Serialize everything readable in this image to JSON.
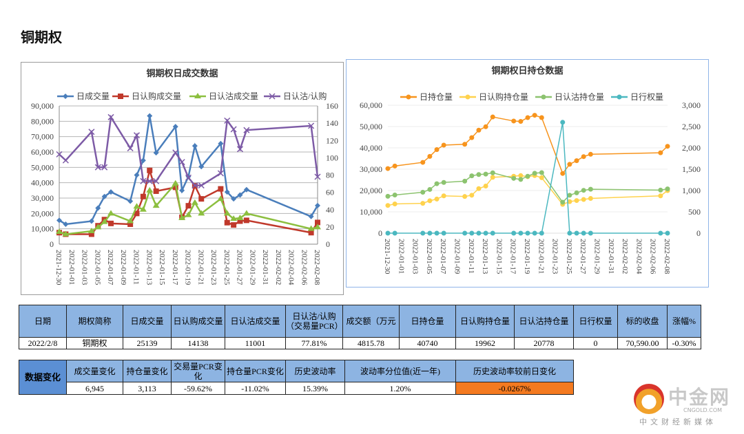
{
  "page_title": "铜期权",
  "chart_data": [
    {
      "type": "line",
      "title": "铜期权日成交数据",
      "x_ticks": [
        "2021-12-30",
        "2022-01-01",
        "2022-01-03",
        "2022-01-05",
        "2022-01-07",
        "2022-01-09",
        "2022-01-11",
        "2022-01-13",
        "2022-01-15",
        "2022-01-17",
        "2022-01-19",
        "2022-01-21",
        "2022-01-23",
        "2022-01-25",
        "2022-01-27",
        "2022-01-29",
        "2022-01-31",
        "2022-02-02",
        "2022-02-04",
        "2022-02-06",
        "2022-02-08"
      ],
      "x": [
        "2021-12-30",
        "2021-12-31",
        "2022-01-04",
        "2022-01-05",
        "2022-01-06",
        "2022-01-07",
        "2022-01-10",
        "2022-01-11",
        "2022-01-12",
        "2022-01-13",
        "2022-01-14",
        "2022-01-17",
        "2022-01-18",
        "2022-01-19",
        "2022-01-20",
        "2022-01-21",
        "2022-01-24",
        "2022-01-25",
        "2022-01-26",
        "2022-01-27",
        "2022-01-28",
        "2022-02-07",
        "2022-02-08"
      ],
      "ylim": [
        0,
        90000
      ],
      "y_ticks": [
        "0",
        "10,000",
        "20,000",
        "30,000",
        "40,000",
        "50,000",
        "60,000",
        "70,000",
        "80,000",
        "90,000"
      ],
      "y2lim": [
        0,
        160
      ],
      "y2_ticks": [
        "0",
        "20",
        "40",
        "60",
        "80",
        "100",
        "120",
        "140",
        "160"
      ],
      "legend_position": "top",
      "grid": true,
      "series": [
        {
          "name": "日成交量",
          "color": "#4a7ebb",
          "marker": "diamond",
          "axis": "left",
          "values": [
            15500,
            13000,
            15000,
            23500,
            31000,
            34000,
            28000,
            45000,
            54500,
            83500,
            59500,
            76500,
            35000,
            44000,
            64000,
            50500,
            65500,
            34000,
            29500,
            32000,
            35500,
            18000,
            25139
          ]
        },
        {
          "name": "日认购成交量",
          "color": "#c0392b",
          "marker": "square",
          "axis": "left",
          "values": [
            7500,
            6500,
            6500,
            12000,
            16000,
            13500,
            13000,
            20000,
            31000,
            48000,
            34500,
            37000,
            17500,
            25000,
            38000,
            29500,
            36000,
            14000,
            12500,
            15000,
            15500,
            7500,
            14138
          ]
        },
        {
          "name": "日认沽成交量",
          "color": "#8cbf3f",
          "marker": "triangle",
          "axis": "left",
          "values": [
            8000,
            6500,
            8500,
            11000,
            14500,
            20000,
            15000,
            24500,
            22500,
            35000,
            25000,
            39500,
            17000,
            19000,
            27000,
            20000,
            29500,
            20000,
            16500,
            17000,
            20000,
            10000,
            11001
          ]
        },
        {
          "name": "日认沽/认购",
          "color": "#7d5ba6",
          "marker": "x",
          "axis": "right",
          "values": [
            104,
            97,
            130,
            89,
            89,
            147,
            111,
            126,
            73,
            73,
            73,
            106,
            95,
            77,
            68,
            68,
            82,
            143,
            133,
            110,
            132,
            137,
            78
          ]
        }
      ]
    },
    {
      "type": "line",
      "title": "铜期权日持仓数据",
      "x_ticks": [
        "2021-12-30",
        "2022-01-01",
        "2022-01-03",
        "2022-01-05",
        "2022-01-07",
        "2022-01-09",
        "2022-01-11",
        "2022-01-13",
        "2022-01-15",
        "2022-01-17",
        "2022-01-19",
        "2022-01-21",
        "2022-01-23",
        "2022-01-25",
        "2022-01-27",
        "2022-01-29",
        "2022-01-31",
        "2022-02-02",
        "2022-02-04",
        "2022-02-06",
        "2022-02-08"
      ],
      "x": [
        "2021-12-30",
        "2021-12-31",
        "2022-01-04",
        "2022-01-05",
        "2022-01-06",
        "2022-01-07",
        "2022-01-10",
        "2022-01-11",
        "2022-01-12",
        "2022-01-13",
        "2022-01-14",
        "2022-01-17",
        "2022-01-18",
        "2022-01-19",
        "2022-01-20",
        "2022-01-21",
        "2022-01-24",
        "2022-01-25",
        "2022-01-26",
        "2022-01-27",
        "2022-01-28",
        "2022-02-07",
        "2022-02-08"
      ],
      "ylim": [
        0,
        60000
      ],
      "y_ticks": [
        "0",
        "10,000",
        "20,000",
        "30,000",
        "40,000",
        "50,000",
        "60,000"
      ],
      "y2lim": [
        0,
        3000
      ],
      "y2_ticks": [
        "0",
        "500",
        "1,000",
        "1,500",
        "2,000",
        "2,500",
        "3,000"
      ],
      "legend_position": "top",
      "grid": true,
      "series": [
        {
          "name": "日持仓量",
          "color": "#f7941d",
          "marker": "circle",
          "axis": "left",
          "values": [
            30300,
            31500,
            33200,
            36000,
            39200,
            41300,
            41700,
            44800,
            48300,
            49900,
            54500,
            52600,
            52400,
            54200,
            55300,
            54200,
            28000,
            32300,
            34000,
            35900,
            37000,
            37700,
            40740
          ]
        },
        {
          "name": "日认购持仓量",
          "color": "#ffd24d",
          "marker": "circle",
          "axis": "left",
          "values": [
            13000,
            13700,
            14000,
            15200,
            16000,
            17500,
            17200,
            17800,
            20900,
            22100,
            26200,
            26700,
            27000,
            26500,
            27000,
            26000,
            13500,
            14800,
            15300,
            15800,
            16300,
            17500,
            19962
          ]
        },
        {
          "name": "日认沽持仓量",
          "color": "#8cc36f",
          "marker": "circle",
          "axis": "left",
          "values": [
            17300,
            17900,
            19200,
            20500,
            23200,
            23800,
            24400,
            26900,
            27500,
            27700,
            28300,
            25700,
            25200,
            26700,
            28100,
            28400,
            14500,
            17800,
            18900,
            20100,
            20600,
            20200,
            20778
          ]
        },
        {
          "name": "日行权量",
          "color": "#4bb8c0",
          "marker": "circle",
          "axis": "right",
          "values": [
            0,
            0,
            0,
            0,
            0,
            0,
            0,
            0,
            0,
            0,
            0,
            0,
            0,
            0,
            0,
            0,
            2600,
            0,
            0,
            0,
            0,
            0,
            0
          ]
        }
      ]
    }
  ],
  "table1": {
    "headers": [
      "日期",
      "期权简称",
      "日成交量",
      "日认购成交量",
      "日认沽成交量",
      "日认沽/认购（交易量PCR）",
      "成交额（万元",
      "日持仓量",
      "日认购持仓量",
      "日认沽持仓量",
      "日行权量",
      "标的收盘",
      "涨幅%"
    ],
    "row": [
      "2022/2/8",
      "铜期权",
      "25139",
      "14138",
      "11001",
      "77.81%",
      "4815.78",
      "40740",
      "19962",
      "20778",
      "0",
      "70,590.00",
      "-0.30%"
    ]
  },
  "table2": {
    "side_label": "数据变化",
    "headers": [
      "成交量变化",
      "持仓量变化",
      "交易量PCR变化",
      "持仓量PCR变化",
      "历史波动率",
      "波动率分位值(近一年)",
      "历史波动率较前日变化"
    ],
    "row": [
      "6,945",
      "3,113",
      "-59.62%",
      "-11.02%",
      "15.39%",
      "1.20%",
      "-0.0267%"
    ],
    "highlight_color": "#f47a20"
  },
  "logo": {
    "name": "中金网",
    "domain": "CNGOLD.COM",
    "tagline": "中文财经新媒体"
  }
}
